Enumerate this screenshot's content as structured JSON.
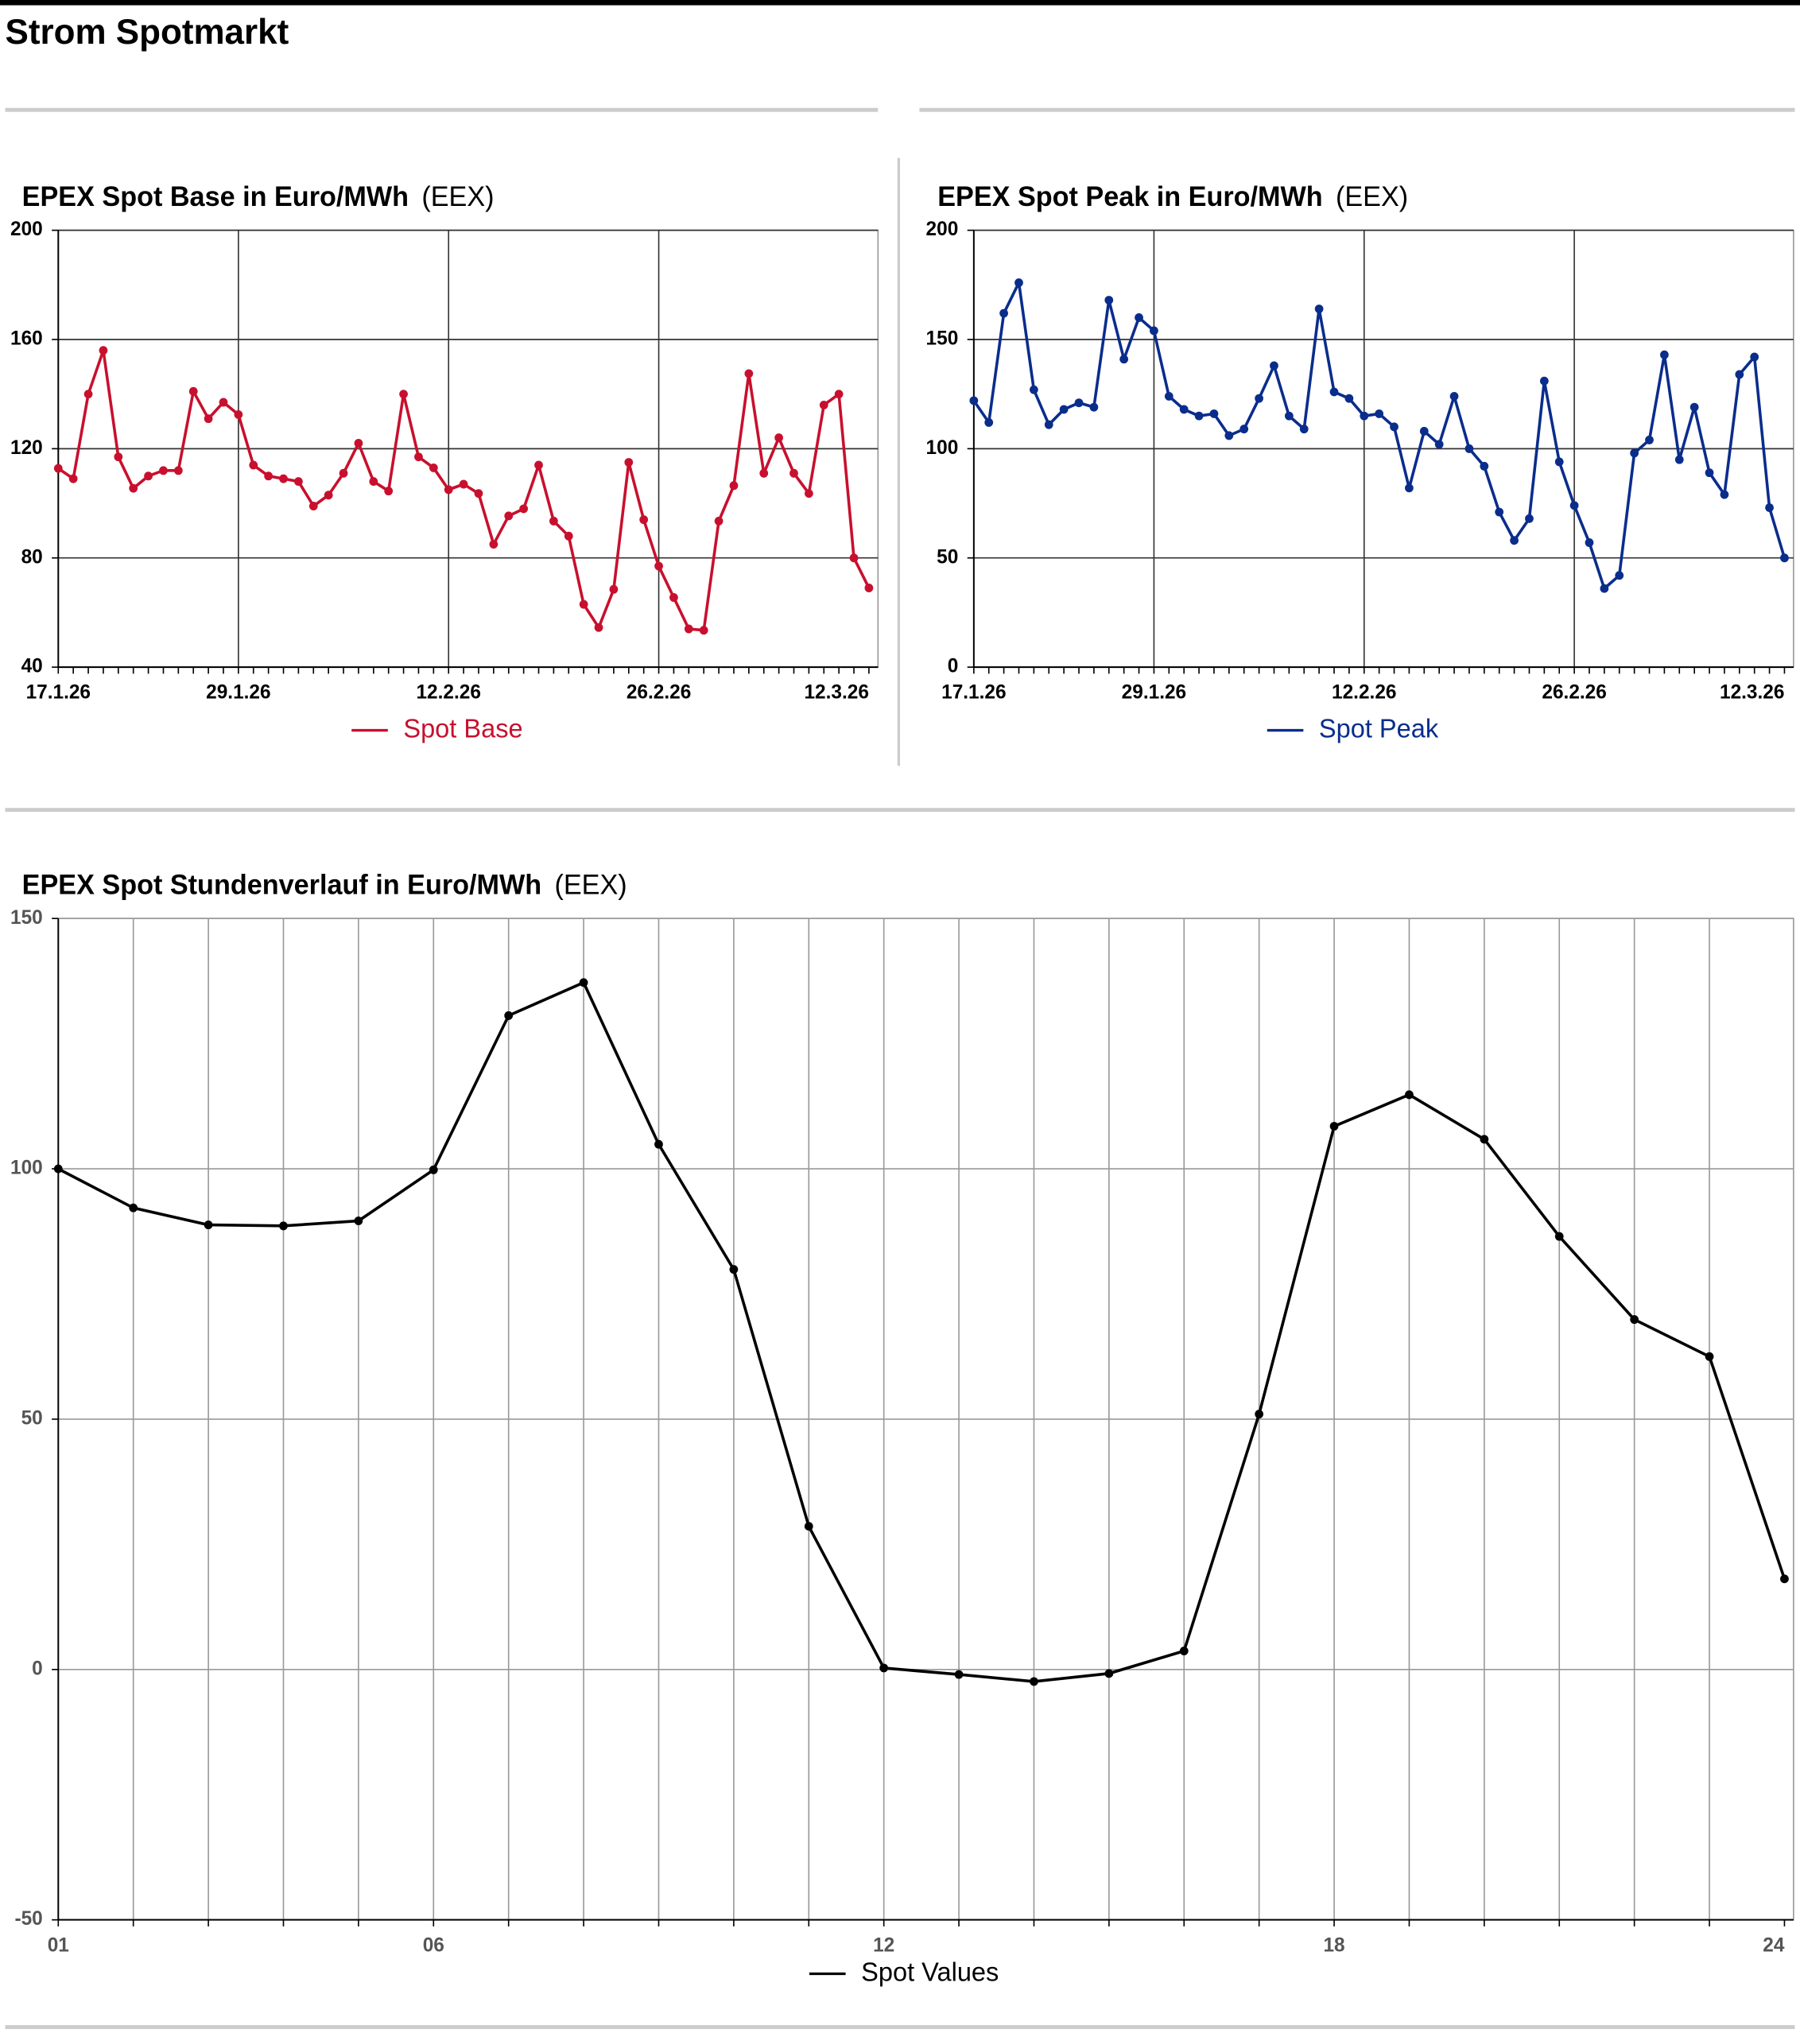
{
  "page": {
    "title": "Strom Spotmarkt"
  },
  "chart_data": [
    {
      "type": "line",
      "title": "EPEX Spot Base in Euro/MWh",
      "source": "(EEX)",
      "categories": [
        "17.1.26",
        null,
        null,
        null,
        null,
        null,
        null,
        null,
        null,
        null,
        null,
        null,
        "29.1.26",
        null,
        null,
        null,
        null,
        null,
        null,
        null,
        null,
        null,
        null,
        null,
        null,
        null,
        "12.2.26",
        null,
        null,
        null,
        null,
        null,
        null,
        null,
        null,
        null,
        null,
        null,
        null,
        null,
        "26.2.26",
        null,
        null,
        null,
        null,
        null,
        null,
        null,
        null,
        null,
        null,
        null,
        null,
        null,
        "12.3.26"
      ],
      "series": [
        {
          "name": "Spot Base",
          "color": "#c8102e",
          "values": [
            112.8,
            109,
            140,
            156,
            117,
            105.5,
            110,
            112,
            112,
            141,
            131,
            137,
            132.5,
            114,
            110,
            109,
            108,
            99,
            103,
            111,
            122,
            108,
            104.5,
            140,
            117,
            113,
            105,
            107,
            103.6,
            85,
            95.4,
            98,
            114,
            93.5,
            88,
            63,
            54.5,
            68.5,
            115,
            94,
            77,
            65.5,
            54,
            53.5,
            93.5,
            106.5,
            147.5,
            111,
            124,
            111,
            103.6,
            136,
            140,
            80,
            69
          ]
        }
      ],
      "ylim": [
        40,
        200
      ],
      "yticks": [
        40,
        80,
        120,
        160,
        200
      ],
      "grid": true
    },
    {
      "type": "line",
      "title": "EPEX Spot Peak in Euro/MWh",
      "source": "(EEX)",
      "categories": [
        "17.1.26",
        null,
        null,
        null,
        null,
        null,
        null,
        null,
        null,
        null,
        null,
        null,
        "29.1.26",
        null,
        null,
        null,
        null,
        null,
        null,
        null,
        null,
        null,
        null,
        null,
        null,
        null,
        "12.2.26",
        null,
        null,
        null,
        null,
        null,
        null,
        null,
        null,
        null,
        null,
        null,
        null,
        null,
        "26.2.26",
        null,
        null,
        null,
        null,
        null,
        null,
        null,
        null,
        null,
        null,
        null,
        null,
        null,
        "12.3.26"
      ],
      "series": [
        {
          "name": "Spot Peak",
          "color": "#0a2d8c",
          "values": [
            122,
            112,
            162,
            176,
            127,
            111,
            118,
            121,
            119,
            168,
            141,
            160,
            154,
            124,
            118,
            115,
            116,
            106,
            109,
            123,
            138,
            115,
            109,
            164,
            126,
            123,
            115,
            116,
            110,
            82,
            108,
            102,
            124,
            100,
            92,
            71,
            58,
            68,
            131,
            94,
            74,
            57,
            36,
            42,
            98,
            104,
            143,
            95,
            119,
            89,
            79,
            134,
            142,
            73,
            50
          ]
        }
      ],
      "ylim": [
        0,
        200
      ],
      "yticks": [
        0,
        50,
        100,
        150,
        200
      ],
      "grid": true
    },
    {
      "type": "line",
      "title": "EPEX Spot Stundenverlauf in Euro/MWh",
      "source": "(EEX)",
      "categories": [
        "01",
        null,
        null,
        null,
        null,
        "06",
        null,
        null,
        null,
        null,
        null,
        "12",
        null,
        null,
        null,
        null,
        null,
        "18",
        null,
        null,
        null,
        null,
        null,
        "24"
      ],
      "series": [
        {
          "name": "Spot Values",
          "color": "#000000",
          "values": [
            100,
            92.2,
            88.8,
            88.6,
            89.6,
            99.8,
            130.6,
            137.2,
            104.9,
            79.9,
            28.6,
            0.3,
            -1,
            -2.4,
            -0.8,
            3.7,
            51,
            108.5,
            114.8,
            105.9,
            86.5,
            69.9,
            62.5,
            18.1
          ]
        }
      ],
      "ylim": [
        -50,
        150
      ],
      "yticks": [
        -50,
        0,
        50,
        100,
        150
      ],
      "grid": true
    }
  ]
}
